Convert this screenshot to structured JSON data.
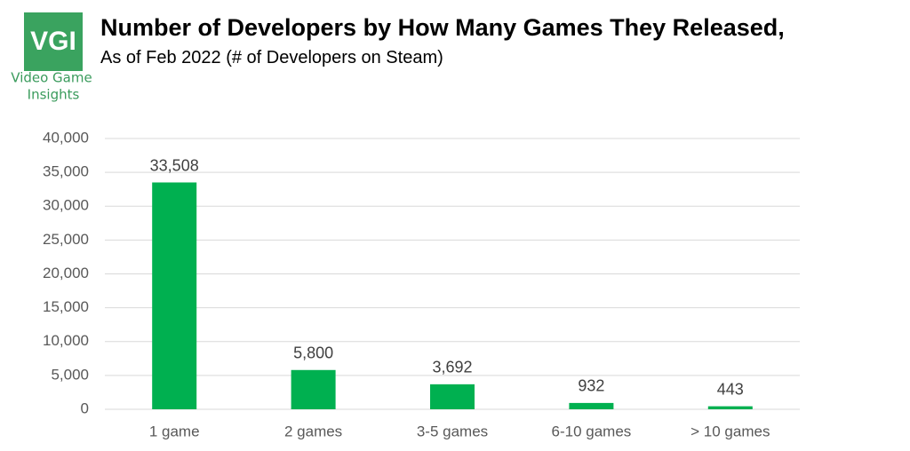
{
  "logo": {
    "text": "VGI",
    "caption": [
      "Video Game",
      "Insights"
    ]
  },
  "chart_data": {
    "type": "bar",
    "title": "Number of Developers by How Many Games They Released,",
    "subtitle": "As of Feb 2022 (# of Developers on Steam)",
    "categories": [
      "1 game",
      "2 games",
      "3-5 games",
      "6-10 games",
      "> 10 games"
    ],
    "values": [
      33508,
      5800,
      3692,
      932,
      443
    ],
    "value_labels": [
      "33,508",
      "5,800",
      "3,692",
      "932",
      "443"
    ],
    "color": "#00b050",
    "ylim": [
      0,
      40000
    ],
    "yticks": [
      0,
      {
        "value": 5000,
        "label": "5,000"
      },
      {
        "value": 10000,
        "label": "10,000"
      },
      {
        "value": 15000,
        "label": "15,000"
      },
      {
        "value": 20000,
        "label": "20,000"
      },
      {
        "value": 25000,
        "label": "25,000"
      },
      {
        "value": 30000,
        "label": "30,000"
      },
      {
        "value": 35000,
        "label": "35,000"
      },
      {
        "value": 40000,
        "label": "40,000"
      }
    ],
    "grid": true
  }
}
